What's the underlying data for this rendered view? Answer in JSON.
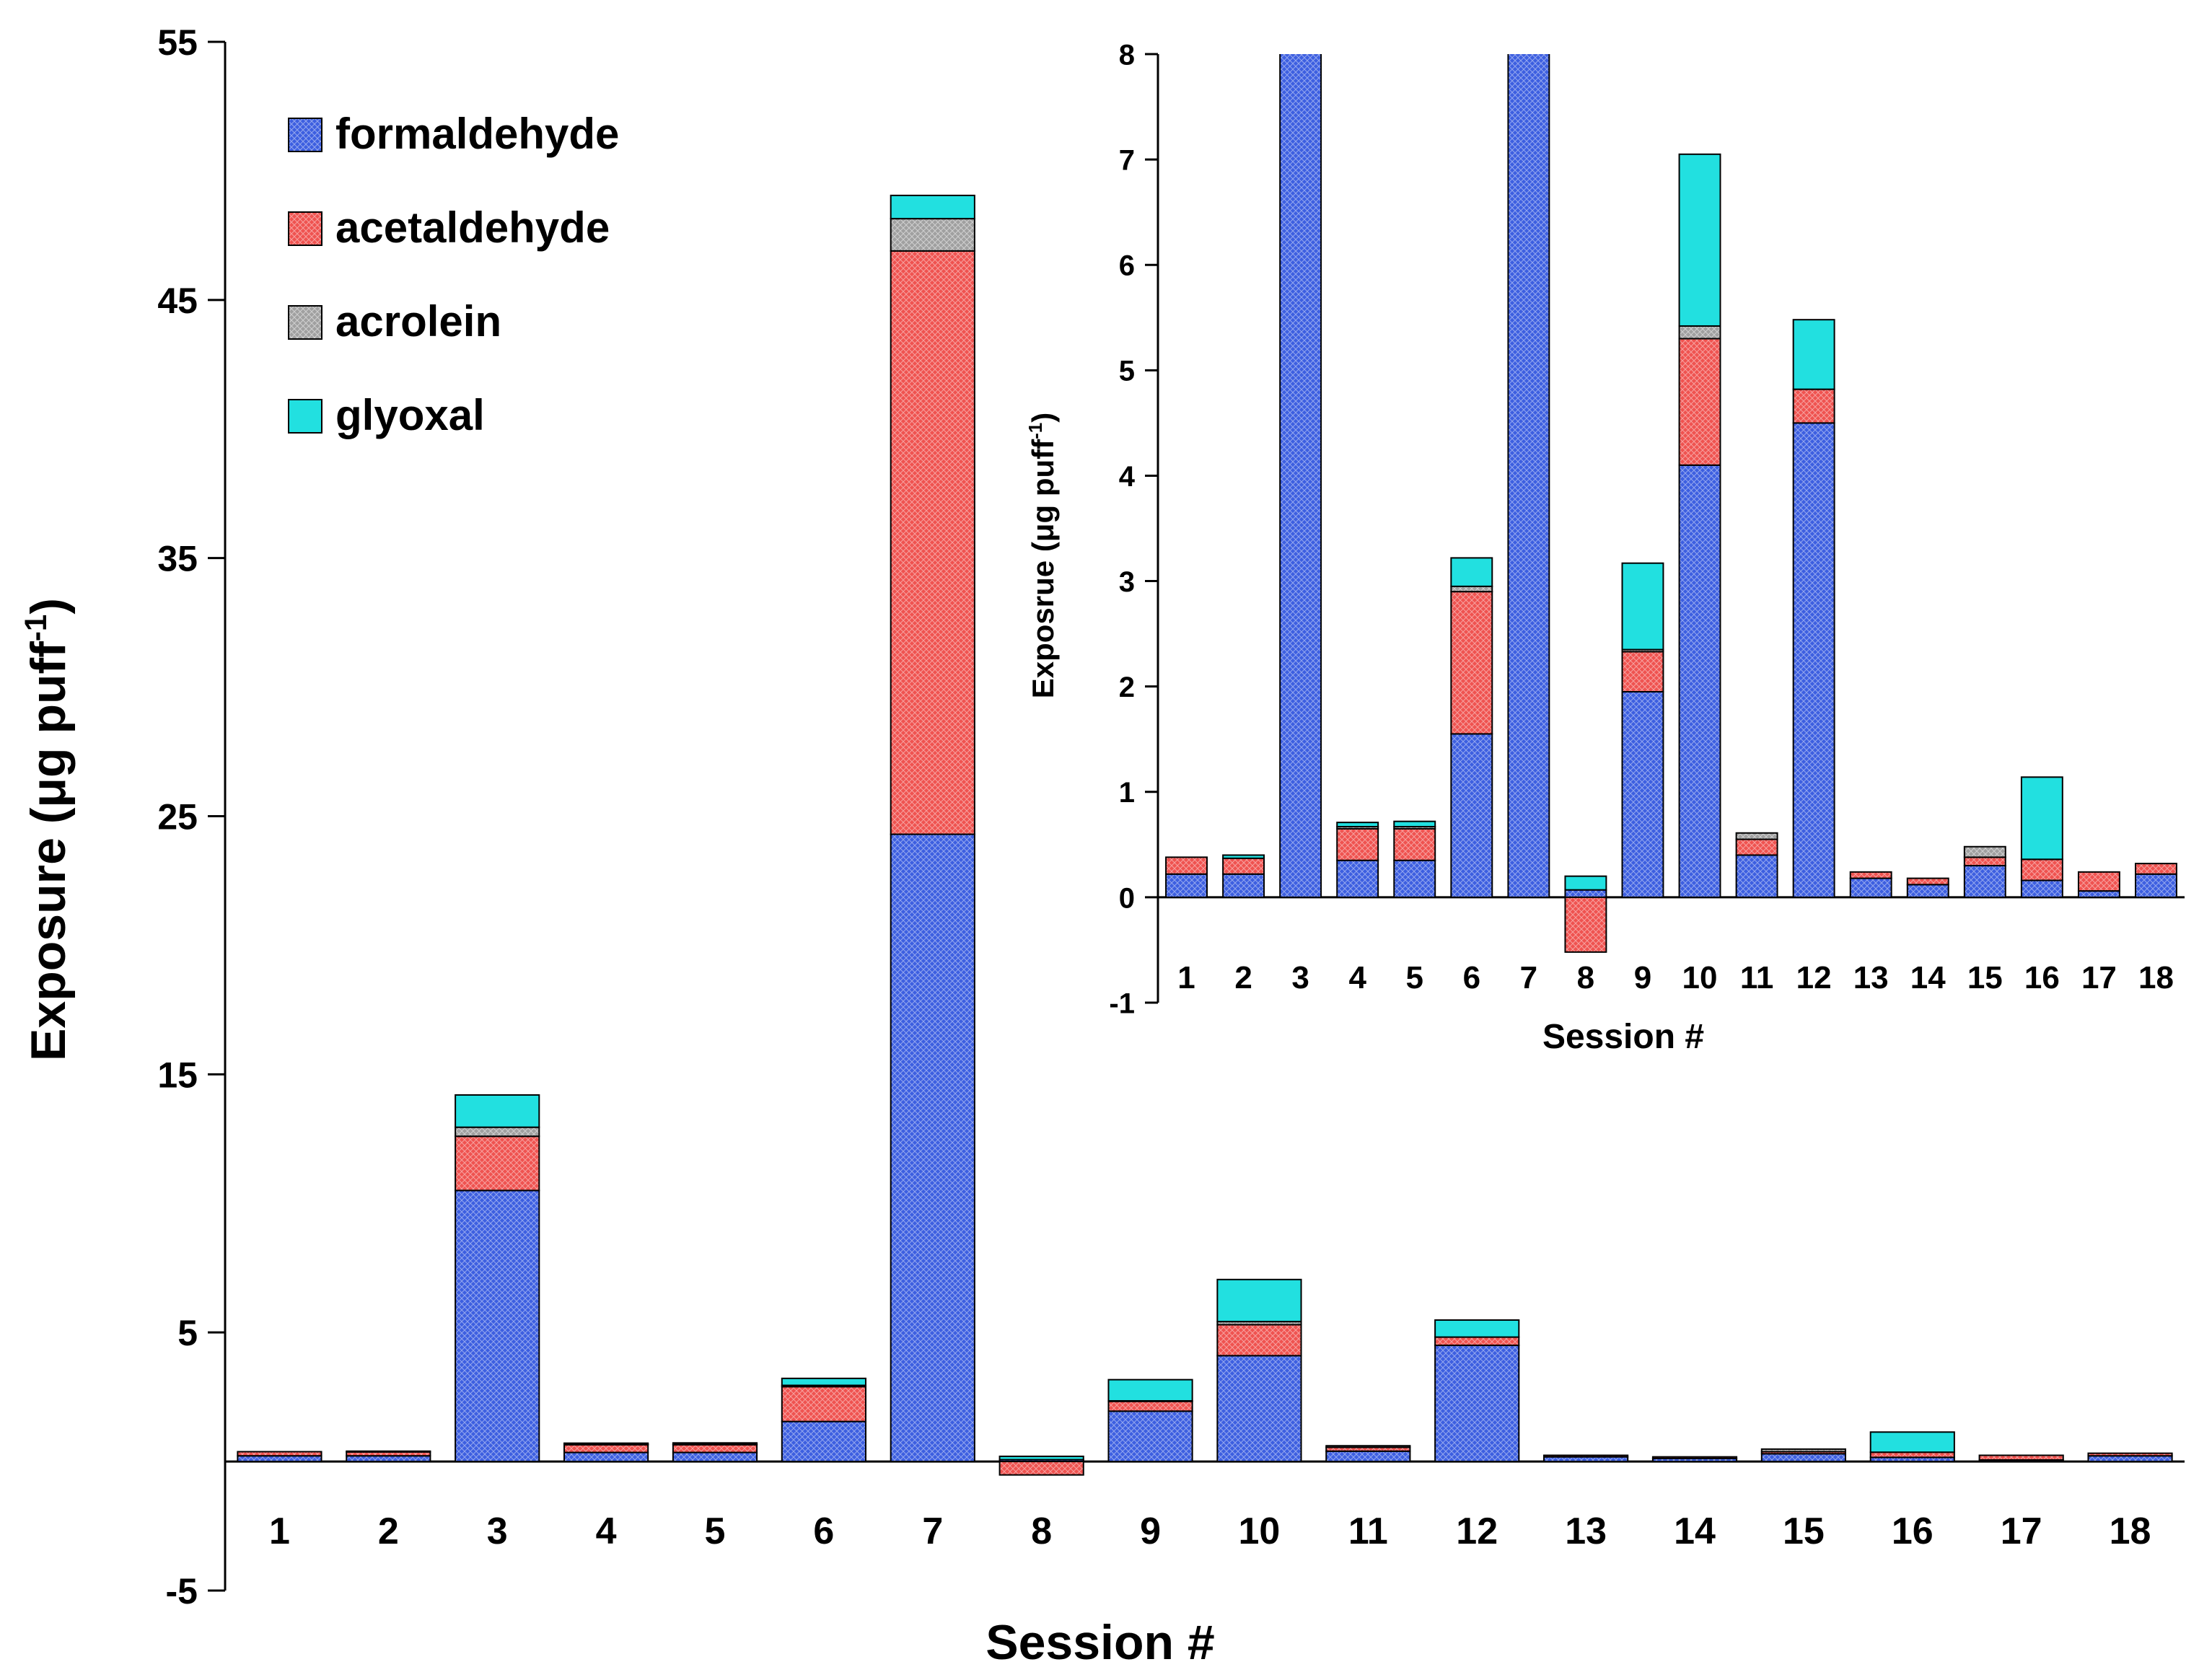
{
  "colors": {
    "formaldehyde": "#3d5fe0",
    "acetaldehyde": "#ef5350",
    "acrolein": "#a0a0a0",
    "glyoxal": "#22e0e0"
  },
  "legend": [
    {
      "key": "formaldehyde",
      "label": "formaldehyde"
    },
    {
      "key": "acetaldehyde",
      "label": "acetaldehyde"
    },
    {
      "key": "acrolein",
      "label": "acrolein"
    },
    {
      "key": "glyoxal",
      "label": "glyoxal"
    }
  ],
  "chart_data": [
    {
      "type": "bar",
      "stacked": true,
      "title": "",
      "xlabel": "Session #",
      "ylabel_main": "Exposure (μg puff",
      "ylabel_sup": "-1",
      "ylabel_close": ")",
      "ylim": [
        -5,
        55
      ],
      "yticks": [
        "-5",
        "5",
        "15",
        "25",
        "35",
        "45",
        "55"
      ],
      "legend_position": "top-left",
      "categories": [
        "1",
        "2",
        "3",
        "4",
        "5",
        "6",
        "7",
        "8",
        "9",
        "10",
        "11",
        "12",
        "13",
        "14",
        "15",
        "16",
        "17",
        "18"
      ],
      "series": [
        {
          "name": "formaldehyde",
          "values": [
            0.22,
            0.22,
            10.5,
            0.35,
            0.35,
            1.55,
            24.3,
            0.07,
            1.95,
            4.1,
            0.4,
            4.5,
            0.18,
            0.12,
            0.3,
            0.16,
            0.06,
            0.22
          ]
        },
        {
          "name": "acetaldehyde",
          "values": [
            0.16,
            0.15,
            2.1,
            0.3,
            0.3,
            1.35,
            22.6,
            -0.52,
            0.38,
            1.2,
            0.15,
            0.32,
            0.06,
            0.06,
            0.08,
            0.2,
            0.18,
            0.1
          ]
        },
        {
          "name": "acrolein",
          "values": [
            0.0,
            0.0,
            0.35,
            0.02,
            0.02,
            0.05,
            1.25,
            0.0,
            0.02,
            0.12,
            0.06,
            0.0,
            0.0,
            0.0,
            0.1,
            0.0,
            0.0,
            0.0
          ]
        },
        {
          "name": "glyoxal",
          "values": [
            0.0,
            0.03,
            1.25,
            0.04,
            0.05,
            0.27,
            0.9,
            0.13,
            0.82,
            1.63,
            0.0,
            0.66,
            0.0,
            0.0,
            0.0,
            0.78,
            0.0,
            0.0
          ]
        }
      ]
    },
    {
      "type": "bar",
      "stacked": true,
      "title": "",
      "xlabel": "Session #",
      "ylabel_main": "Exposrue (μg puff",
      "ylabel_sup": "-1",
      "ylabel_close": ")",
      "ylim": [
        -1,
        8
      ],
      "yticks": [
        "-1",
        "0",
        "1",
        "2",
        "3",
        "4",
        "5",
        "6",
        "7",
        "8"
      ],
      "categories": [
        "1",
        "2",
        "3",
        "4",
        "5",
        "6",
        "7",
        "8",
        "9",
        "10",
        "11",
        "12",
        "13",
        "14",
        "15",
        "16",
        "17",
        "18"
      ],
      "series_ref": "same as main chart (inset zoom, bars clipped at 8)"
    }
  ]
}
